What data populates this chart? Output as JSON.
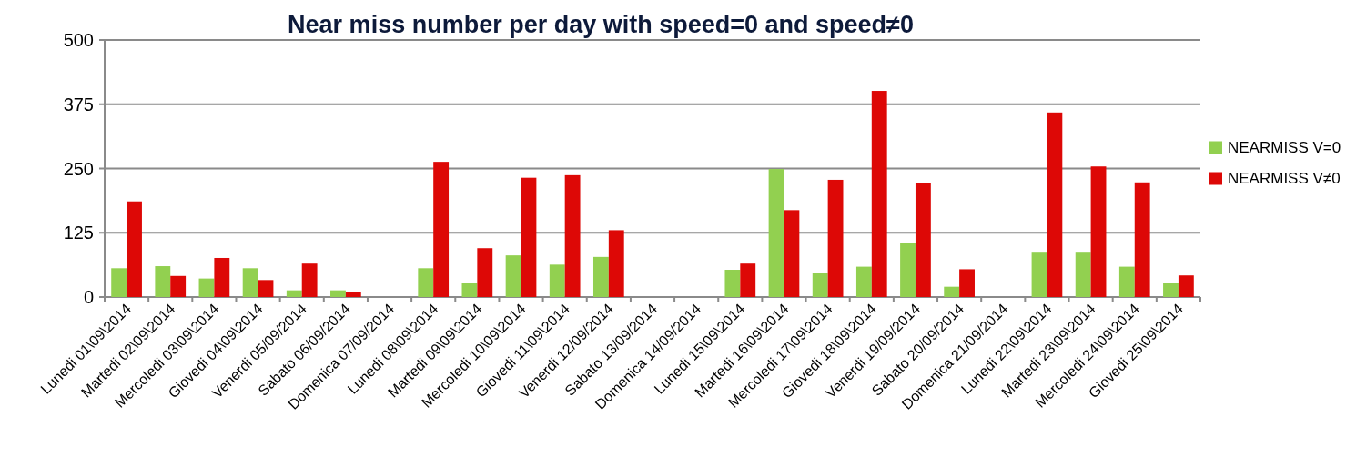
{
  "chart_data": {
    "type": "bar",
    "title": "Near miss number per day with speed=0 and speed≠0",
    "categories": [
      "Lunedi 01\\09\\2014",
      "Martedi 02\\09\\2014",
      "Mercoledi 03\\09\\2014",
      "Giovedi 04\\09\\2014",
      "Venerdi 05/09/2014",
      "Sabato 06/09/2014",
      "Domenica 07/09/2014",
      "Lunedi 08\\09\\2014",
      "Martedi 09\\09\\2014",
      "Mercoledi 10\\09\\2014",
      "Giovedi 11\\09\\2014",
      "Venerdi 12/09/2014",
      "Sabato 13/09/2014",
      "Domenica 14/09/2014",
      "Lunedi 15\\09\\2014",
      "Martedi 16\\09\\2014",
      "Mercoledi 17\\09\\2014",
      "Giovedi 18\\09\\2014",
      "Venerdi 19/09/2014",
      "Sabato 20/09/2014",
      "Domenica 21/09/2014",
      "Lunedi 22\\09\\2014",
      "Martedi 23\\09\\2014",
      "Mercoledi 24\\09\\2014",
      "Giovedi 25\\09\\2014"
    ],
    "series": [
      {
        "name": "NEARMISS V=0",
        "color": "#92d050",
        "values": [
          56,
          60,
          36,
          56,
          13,
          13,
          0,
          56,
          27,
          81,
          63,
          78,
          0,
          0,
          53,
          249,
          47,
          59,
          106,
          20,
          0,
          88,
          88,
          59,
          27
        ]
      },
      {
        "name": "NEARMISS V≠0",
        "color": "#dd0806",
        "values": [
          186,
          41,
          76,
          33,
          65,
          10,
          0,
          263,
          95,
          232,
          237,
          130,
          0,
          0,
          65,
          169,
          228,
          401,
          221,
          54,
          0,
          359,
          254,
          223,
          42
        ]
      }
    ],
    "ylim": [
      0,
      500
    ],
    "yticks": [
      0,
      125,
      250,
      375,
      500
    ],
    "grid": "y",
    "legend": "right"
  }
}
